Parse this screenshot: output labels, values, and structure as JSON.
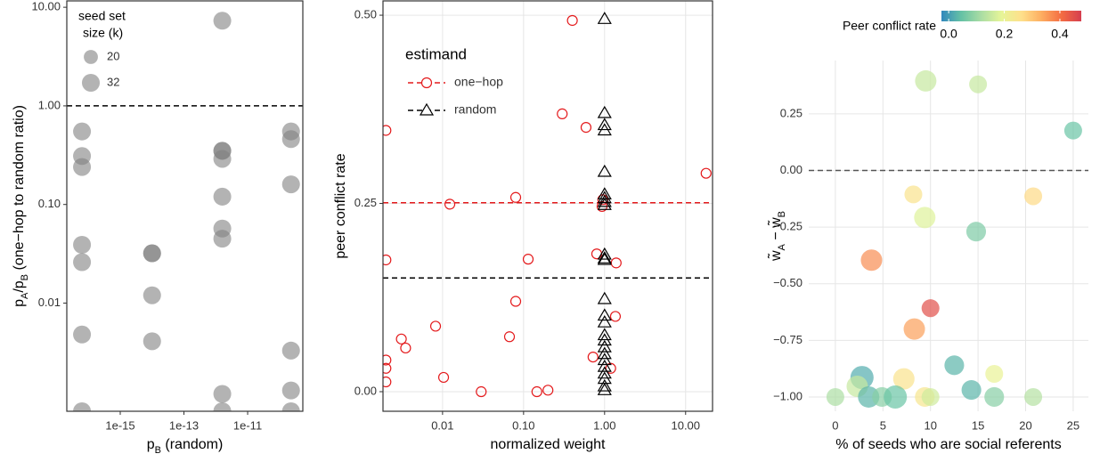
{
  "chart_data": [
    {
      "type": "scatter",
      "xlabel": [
        "p",
        "B",
        "  (random)"
      ],
      "ylabel": [
        "p",
        "A",
        "/p",
        "B",
        "  (one−hop to random ratio)"
      ],
      "xlog": true,
      "ylog": true,
      "frame": true,
      "grid": false,
      "xlim": [
        2.1e-17,
        5.4e-10
      ],
      "ylim": [
        0.0008,
        11.6
      ],
      "xticks": [
        {
          "value": 1e-15,
          "label": "1e-15"
        },
        {
          "value": 1e-13,
          "label": "1e-13"
        },
        {
          "value": 1e-11,
          "label": "1e-11"
        }
      ],
      "yticks": [
        0.01,
        {
          "value": 0.1,
          "label": "0.10"
        },
        {
          "value": 1,
          "label": "1.00"
        },
        {
          "value": 10,
          "label": "10.00"
        }
      ],
      "hlines": [
        {
          "y": 1,
          "color": "#000000"
        }
      ],
      "size_legend": {
        "title": [
          "seed set",
          "size (k)"
        ],
        "values": [
          20,
          32
        ],
        "position": "top-left"
      },
      "series": [
        {
          "color": "#808080",
          "marker": "circle-filled",
          "x": [
            6.3e-17,
            6.3e-17,
            6.3e-17,
            6.3e-17,
            6.3e-17,
            6.3e-17,
            6.3e-17,
            1e-14,
            1e-14,
            1e-14,
            1e-14,
            1.6e-12,
            1.6e-12,
            1.6e-12,
            1.6e-12,
            1.6e-12,
            1.6e-12,
            1.6e-12,
            1.6e-12,
            1.6e-12,
            2.3e-10,
            2.3e-10,
            2.3e-10,
            2.3e-10,
            2.3e-10,
            2.3e-10
          ],
          "values": [
            0.55,
            0.31,
            0.24,
            0.039,
            0.026,
            0.0048,
            0.0008,
            0.032,
            0.032,
            0.012,
            0.0041,
            7.3,
            0.35,
            0.35,
            0.29,
            0.12,
            0.057,
            0.045,
            0.0012,
            0.0008,
            0.55,
            0.46,
            0.16,
            0.0033,
            0.0013,
            0.0008
          ],
          "sizes": [
            32,
            32,
            32,
            32,
            32,
            32,
            32,
            32,
            32,
            32,
            32,
            32,
            32,
            32,
            32,
            32,
            32,
            32,
            32,
            32,
            32,
            32,
            32,
            32,
            32,
            32
          ]
        }
      ]
    },
    {
      "type": "scatter",
      "xlabel": [
        "normalized weight"
      ],
      "ylabel": [
        "peer conflict rate"
      ],
      "xlog": true,
      "ylog": false,
      "frame": true,
      "grid": true,
      "xlim": [
        0.00184,
        21.5
      ],
      "ylim": [
        -0.026,
        0.519
      ],
      "xticks": [
        0.01,
        {
          "value": 0.1,
          "label": "0.10"
        },
        {
          "value": 1,
          "label": "1.00"
        },
        {
          "value": 10,
          "label": "10.00"
        }
      ],
      "yticks": [
        {
          "value": 0,
          "label": "0.00"
        },
        {
          "value": 0.25,
          "label": "0.25"
        },
        {
          "value": 0.5,
          "label": "0.50"
        }
      ],
      "hlines": [
        {
          "y": 0.251,
          "color": "#e41a1c"
        },
        {
          "y": 0.151,
          "color": "#000000"
        }
      ],
      "legend": {
        "title": "estimand",
        "position": "top-left"
      },
      "series": [
        {
          "name": "one−hop",
          "color": "#e41a1c",
          "marker": "circle-open",
          "x": [
            0.4,
            0.002,
            0.3,
            0.59,
            17.9,
            0.002,
            0.0123,
            0.08,
            0.95,
            0.93,
            0.114,
            0.8,
            1.39,
            0.002,
            0.002,
            0.002,
            0.0031,
            0.0035,
            0.0082,
            0.067,
            0.08,
            1.36,
            0.72,
            1.19,
            0.0103,
            0.03,
            0.2,
            0.146
          ],
          "values": [
            0.493,
            0.347,
            0.369,
            0.351,
            0.29,
            0.175,
            0.249,
            0.258,
            0.255,
            0.246,
            0.176,
            0.183,
            0.171,
            0.042,
            0.031,
            0.013,
            0.07,
            0.058,
            0.087,
            0.073,
            0.12,
            0.1,
            0.046,
            0.031,
            0.019,
            0,
            0.002,
            0
          ]
        },
        {
          "name": "random",
          "color": "#000000",
          "marker": "triangle-open",
          "x": [
            1,
            1,
            1,
            1,
            1,
            1,
            1,
            1,
            1,
            1,
            1,
            1,
            1,
            1,
            1,
            1,
            1,
            1,
            1,
            1,
            1,
            1,
            1,
            1,
            1
          ],
          "values": [
            0.495,
            0.37,
            0.354,
            0.347,
            0.292,
            0.262,
            0.257,
            0.252,
            0.248,
            0.182,
            0.177,
            0.175,
            0.123,
            0.101,
            0.092,
            0.075,
            0.068,
            0.059,
            0.05,
            0.042,
            0.033,
            0.024,
            0.017,
            0.007,
            0.002
          ]
        }
      ]
    },
    {
      "type": "scatter",
      "xlabel": [
        "% of seeds who are social referents"
      ],
      "ylabel": [
        "w̃",
        "A",
        " − w̃",
        "B"
      ],
      "xlog": false,
      "ylog": false,
      "frame": false,
      "grid": true,
      "xlim": [
        -2.8,
        26.6
      ],
      "ylim": [
        -1.063,
        0.485
      ],
      "xticks": [
        0,
        5,
        10,
        15,
        20,
        25
      ],
      "yticks": [
        {
          "value": -1,
          "label": "−1.00"
        },
        {
          "value": -0.75,
          "label": "−0.75"
        },
        {
          "value": -0.5,
          "label": "−0.50"
        },
        {
          "value": -0.25,
          "label": "−0.25"
        },
        {
          "value": 0,
          "label": "0.00"
        },
        {
          "value": 0.25,
          "label": "0.25"
        }
      ],
      "hlines": [
        {
          "y": 0,
          "color": "#555555"
        }
      ],
      "colorbar": {
        "title": "Peer conflict rate",
        "clim": [
          -0.026,
          0.477
        ],
        "ticks": [
          {
            "value": 0,
            "label": "0.0"
          },
          0.2,
          0.4
        ],
        "colormap": [
          "#3288bd",
          "#66c2a5",
          "#abdda4",
          "#e6f598",
          "#fee08b",
          "#fdae61",
          "#f46d43",
          "#d53e4f"
        ]
      },
      "series": [
        {
          "marker": "circle-filled",
          "x": [
            9.5,
            15,
            25,
            8.2,
            20.8,
            9.4,
            14.8,
            3.8,
            10,
            8.3,
            12.5,
            16.7,
            2.8,
            7.2,
            2.3,
            14.3,
            0,
            3.5,
            4.9,
            6.3,
            9.4,
            10,
            16.7,
            20.8
          ],
          "values": [
            0.395,
            0.38,
            0.176,
            -0.106,
            -0.114,
            -0.208,
            -0.27,
            -0.396,
            -0.608,
            -0.7,
            -0.86,
            -0.898,
            -0.914,
            -0.92,
            -0.953,
            -0.969,
            -1,
            -1,
            -1,
            -1,
            -1,
            -1,
            -1,
            -1
          ],
          "sizes": [
            46,
            32,
            32,
            32,
            32,
            46,
            39,
            46,
            32,
            46,
            39,
            32,
            54,
            46,
            46,
            39,
            32,
            46,
            39,
            54,
            39,
            32,
            39,
            32
          ],
          "rates": [
            0.15,
            0.15,
            0.05,
            0.25,
            0.27,
            0.18,
            0.07,
            0.37,
            0.45,
            0.35,
            0.03,
            0.2,
            0.02,
            0.25,
            0.15,
            0.03,
            0.12,
            0.03,
            0.08,
            0.05,
            0.24,
            0.16,
            0.08,
            0.13
          ]
        }
      ]
    }
  ]
}
